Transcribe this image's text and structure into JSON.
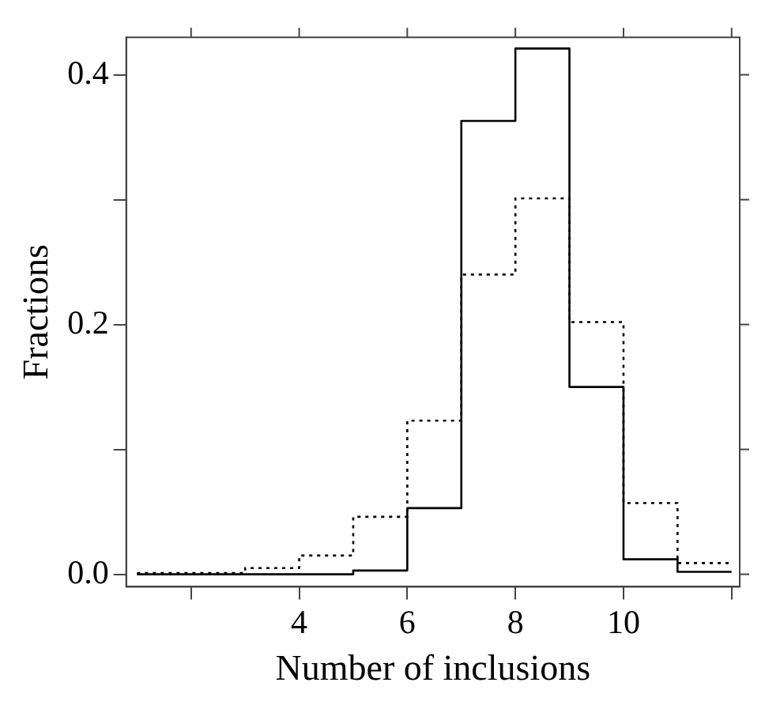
{
  "chart_data": {
    "type": "histogram",
    "xlabel": "Number of inclusions",
    "ylabel": "Fractions",
    "bins": [
      1,
      2,
      3,
      4,
      5,
      6,
      7,
      8,
      9,
      10,
      11,
      12
    ],
    "series": [
      {
        "color": "#000000",
        "line_style": "solid",
        "values": [
          0.0,
          0.0,
          0.0,
          0.0,
          0.003,
          0.053,
          0.363,
          0.421,
          0.15,
          0.012,
          0.002
        ]
      },
      {
        "color": "#000000",
        "line_style": "dotted",
        "values": [
          0.001,
          0.001,
          0.005,
          0.015,
          0.046,
          0.123,
          0.24,
          0.301,
          0.202,
          0.057,
          0.009
        ]
      }
    ],
    "xlim": [
      0.8,
      12.15
    ],
    "ylim": [
      -0.01,
      0.43
    ],
    "xticks": [
      {
        "value": 2,
        "label": null
      },
      4,
      6,
      8,
      10,
      {
        "value": 12,
        "label": null
      }
    ],
    "yticks": [
      {
        "value": 0,
        "label": "0.0"
      },
      {
        "value": 0.1,
        "label": null
      },
      {
        "value": 0.2,
        "label": "0.2"
      },
      {
        "value": 0.3,
        "label": null
      },
      {
        "value": 0.4,
        "label": "0.4"
      }
    ],
    "grid": false,
    "legend": false
  }
}
